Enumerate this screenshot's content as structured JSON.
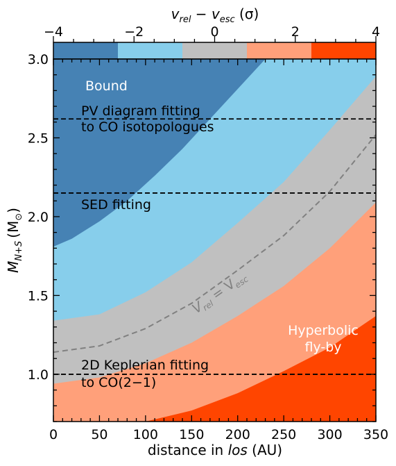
{
  "chart_data": {
    "type": "heatmap",
    "title": "",
    "xlabel": "distance in los (AU)",
    "ylabel": "M_N+S (M_⊙)",
    "xlim": [
      0,
      350
    ],
    "ylim": [
      0.7,
      3.0
    ],
    "xticks": [
      0,
      50,
      100,
      150,
      200,
      250,
      300,
      350
    ],
    "yticks": [
      1.0,
      1.5,
      2.0,
      2.5,
      3.0
    ],
    "colorbar": {
      "label": "v_rel − v_esc (σ)",
      "position": "top",
      "range": [
        -4,
        4
      ],
      "ticks": [
        -4,
        -2,
        0,
        2,
        4
      ],
      "bins": [
        {
          "from": -4.0,
          "to": -2.4,
          "color": "#4682b4"
        },
        {
          "from": -2.4,
          "to": -0.8,
          "color": "#87ceeb"
        },
        {
          "from": -0.8,
          "to": 0.8,
          "color": "#c0c0c0"
        },
        {
          "from": 0.8,
          "to": 2.4,
          "color": "#ffa07a"
        },
        {
          "from": 2.4,
          "to": 4.0,
          "color": "#ff4500"
        }
      ]
    },
    "boundaries": [
      {
        "name": "steelblue-skyblue",
        "x": [
          0,
          20,
          50,
          80,
          110,
          140,
          170,
          200,
          230
        ],
        "y": [
          1.81,
          1.86,
          1.97,
          2.1,
          2.26,
          2.43,
          2.62,
          2.81,
          3.0
        ]
      },
      {
        "name": "skyblue-silver",
        "x": [
          0,
          50,
          100,
          150,
          200,
          250,
          300,
          350
        ],
        "y": [
          1.34,
          1.38,
          1.52,
          1.71,
          1.96,
          2.22,
          2.55,
          2.89
        ]
      },
      {
        "name": "silver-lightsalmon",
        "x": [
          0,
          50,
          100,
          150,
          200,
          250,
          300,
          350
        ],
        "y": [
          0.94,
          0.98,
          1.07,
          1.2,
          1.37,
          1.56,
          1.8,
          2.09
        ]
      },
      {
        "name": "lightsalmon-orangered",
        "x": [
          100,
          150,
          200,
          250,
          300,
          350
        ],
        "y": [
          0.7,
          0.77,
          0.88,
          1.02,
          1.17,
          1.37
        ]
      }
    ],
    "escape_curve": {
      "label": "v_rel = v_esc",
      "x": [
        0,
        50,
        100,
        150,
        200,
        250,
        300,
        350
      ],
      "y": [
        1.14,
        1.18,
        1.29,
        1.45,
        1.66,
        1.88,
        2.16,
        2.52
      ]
    },
    "hlines": [
      {
        "y": 2.62,
        "label": "PV diagram fitting to CO isotopologues"
      },
      {
        "y": 2.15,
        "label": "SED fitting"
      },
      {
        "y": 1.0,
        "label": "2D Keplerian fitting to CO(2−1)"
      }
    ],
    "annotations": [
      "Bound",
      "Hyperbolic fly-by"
    ],
    "grid": false
  },
  "texts": {
    "bound": "Bound",
    "pv_line1": "PV diagram fitting",
    "pv_line2": "to CO isotopologues",
    "sed": "SED fitting",
    "kep_line1": "2D Keplerian fitting",
    "kep_line2": "to CO(2−1)",
    "hyper_line1": "Hyperbolic",
    "hyper_line2": "fly-by",
    "xlabel_pre": "distance in ",
    "xlabel_it": "los",
    "xlabel_post": " (AU)",
    "ylabel_main": "M",
    "ylabel_sub": "N+S",
    "ylabel_unit": "(M",
    "ylabel_unit_sub": "⊙",
    "ylabel_close": ")",
    "cb_v1": "v",
    "cb_sub1": "rel",
    "cb_minus": " − ",
    "cb_v2": "v",
    "cb_sub2": "esc",
    "cb_unit": " (σ)",
    "curve_v1": "V",
    "curve_sub1": "rel",
    "curve_eq": " = V",
    "curve_sub2": "esc"
  }
}
